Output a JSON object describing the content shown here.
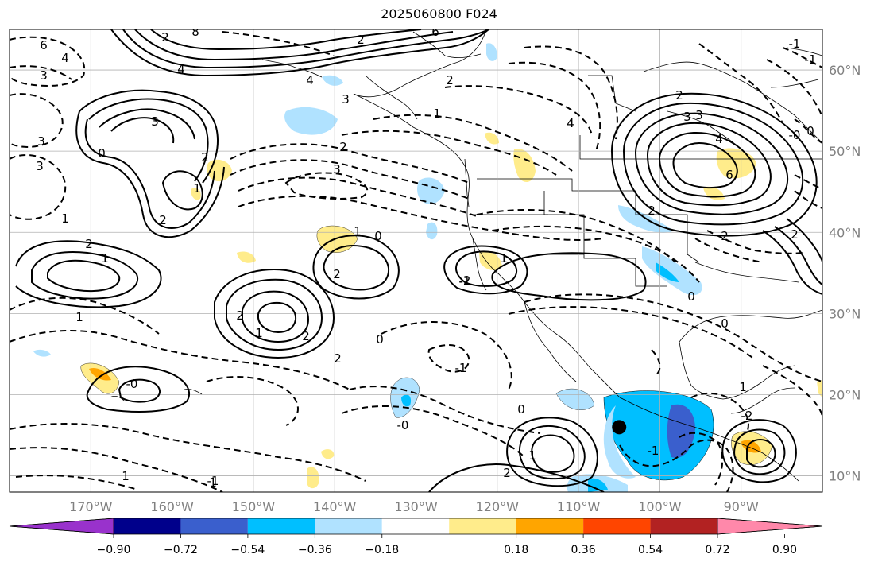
{
  "title": "2025060800 F024",
  "map": {
    "lon_range": [
      -180,
      -80
    ],
    "lat_range": [
      8,
      65
    ],
    "lon_ticks": [
      "170°W",
      "160°W",
      "150°W",
      "140°W",
      "130°W",
      "120°W",
      "110°W",
      "100°W",
      "90°W"
    ],
    "lat_ticks": [
      "60°N",
      "50°N",
      "40°N",
      "30°N",
      "20°N",
      "10°N"
    ],
    "grid": true,
    "marker": {
      "lon": -105.0,
      "lat": 16.0,
      "color": "#000000"
    }
  },
  "contour_labels": [
    "6",
    "8",
    "2",
    "4",
    "2",
    "6",
    "4",
    "3",
    "2",
    "4",
    "3",
    "1",
    "3",
    "2",
    "4",
    "2",
    "3",
    "1",
    "2",
    "3",
    "3",
    "4",
    "6",
    "0",
    "3",
    "3",
    "2",
    "1",
    "2",
    "1",
    "1",
    "2",
    "1",
    "2",
    "2",
    "1",
    "2",
    "0",
    "-2",
    "2",
    "2",
    "2",
    "-0",
    "0",
    "0",
    "1",
    "0",
    "-1",
    "-1",
    "1",
    "-2",
    "-0",
    "0",
    "1",
    "-1",
    "-0",
    "2",
    "1",
    "1",
    "-1",
    "-1",
    "-1",
    "0"
  ],
  "colorbar": {
    "ticks": [
      "−0.90",
      "−0.72",
      "−0.54",
      "−0.36",
      "−0.18",
      "0.18",
      "0.36",
      "0.54",
      "0.72",
      "0.90"
    ],
    "colors": [
      "#9932cc",
      "#00008b",
      "#3a5fcd",
      "#00bfff",
      "#b0e2ff",
      "#ffffff",
      "#ffec8b",
      "#ffa500",
      "#ff4500",
      "#b22222",
      "#ff88aa"
    ]
  },
  "colors": {
    "positive_contour": "#000000",
    "negative_contour": "#000000",
    "axis_label": "#808080",
    "grid": "#b0b0b0"
  }
}
